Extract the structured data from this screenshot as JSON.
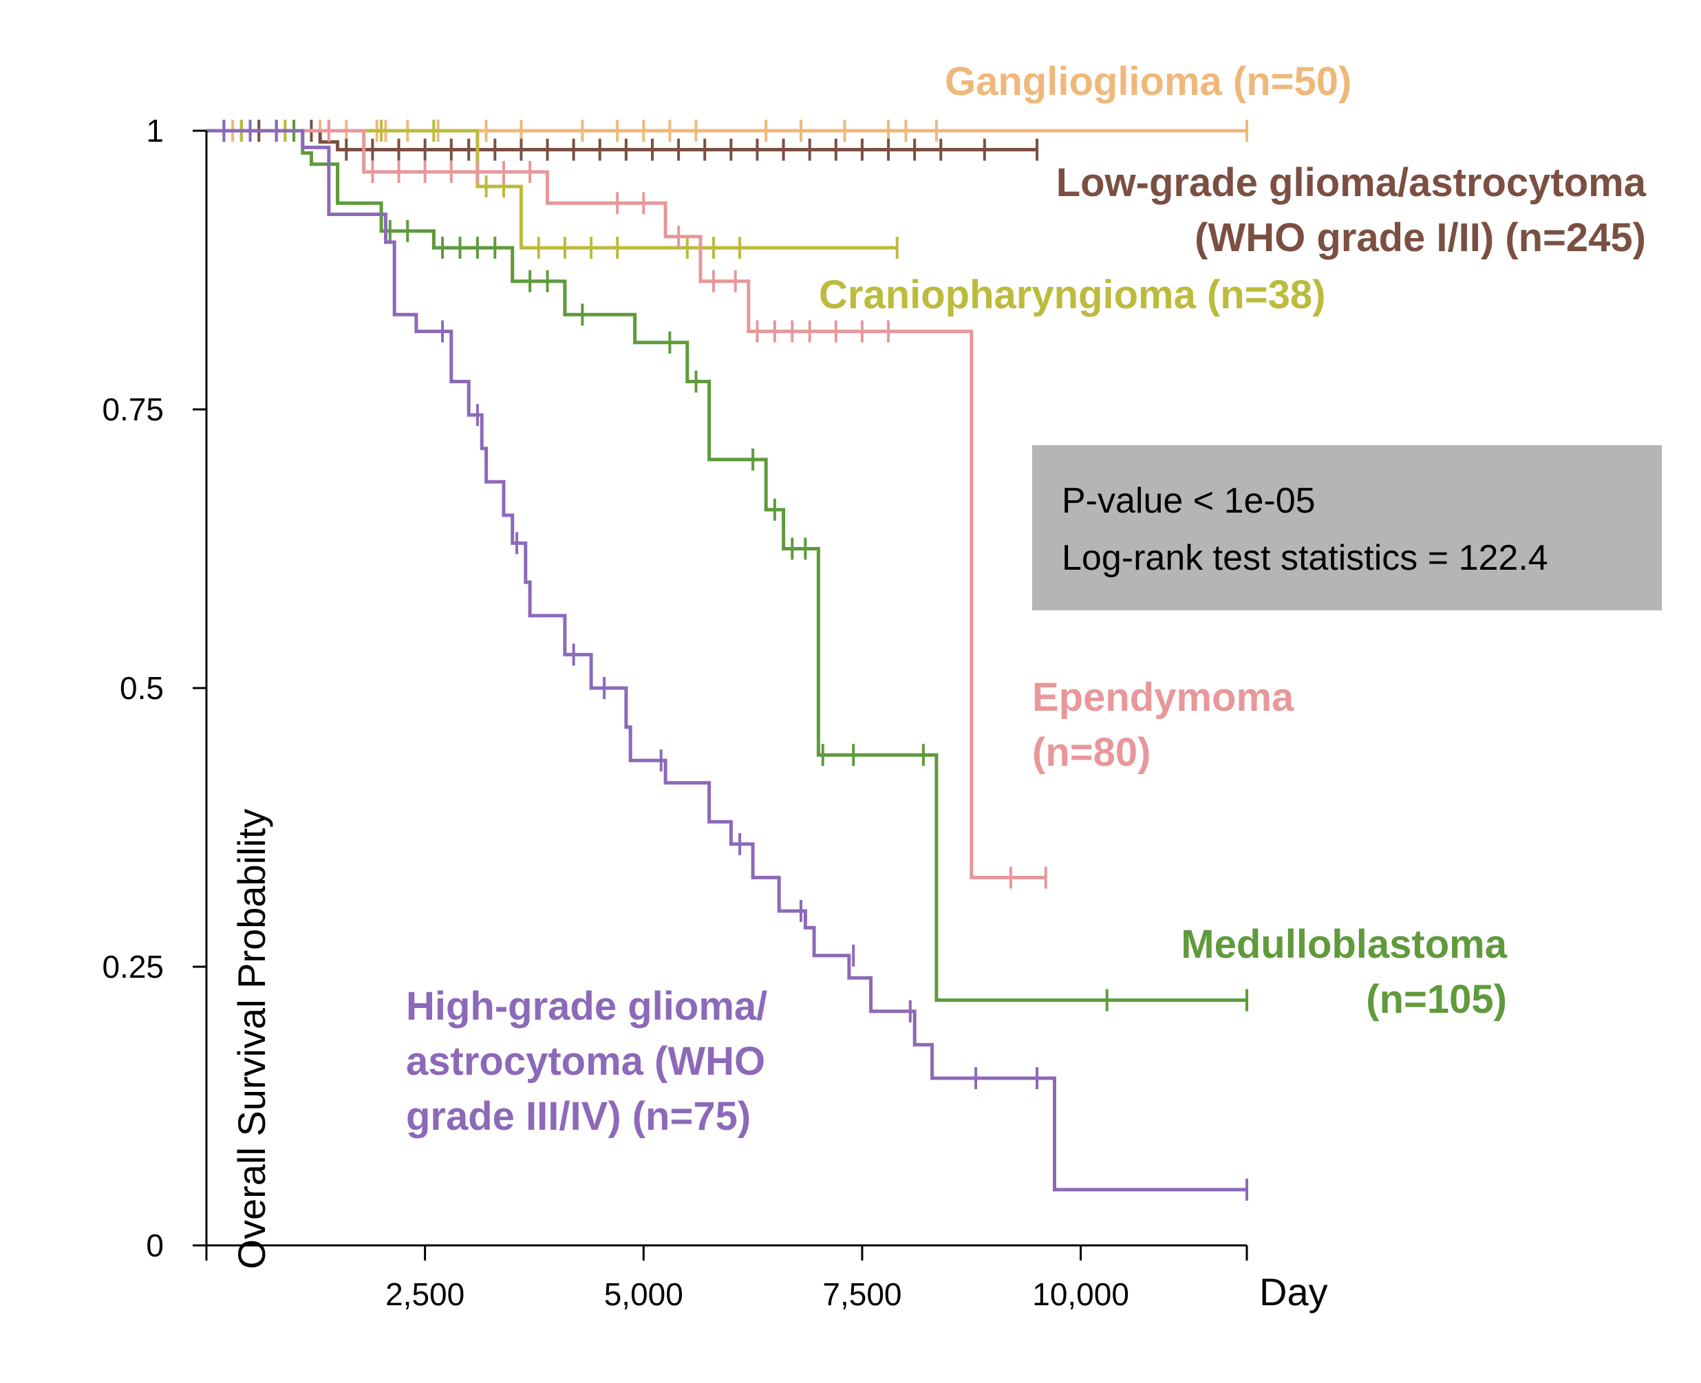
{
  "chart_data": {
    "type": "line",
    "subtype": "kaplan-meier step curves with censor ticks",
    "xlabel": "Day",
    "ylabel": "Overall Survival Probability",
    "xlim": [
      0,
      11900
    ],
    "ylim": [
      0,
      1
    ],
    "x_ticks": [
      2500,
      5000,
      7500,
      10000
    ],
    "x_tick_labels": [
      "2,500",
      "5,000",
      "7,500",
      "10,000"
    ],
    "y_ticks": [
      0,
      0.25,
      0.5,
      0.75,
      1
    ],
    "y_tick_labels": [
      "0",
      "0.25",
      "0.5",
      "0.75",
      "1"
    ],
    "grid": false,
    "stats_box": {
      "lines": [
        "P-value < 1e-05",
        "Log-rank test statistics = 122.4"
      ],
      "background": "#b5b5b5"
    },
    "series": [
      {
        "name": "Ganglioglioma (n=50)",
        "label_lines": [
          "Ganglioglioma (n=50)"
        ],
        "label_align": "left",
        "color": "#efb87a",
        "steps": [
          [
            0,
            1
          ],
          [
            11900,
            1
          ]
        ],
        "censors": [
          [
            300,
            1
          ],
          [
            600,
            1
          ],
          [
            900,
            1
          ],
          [
            1300,
            1
          ],
          [
            1600,
            1
          ],
          [
            1950,
            1
          ],
          [
            2050,
            1
          ],
          [
            2300,
            1
          ],
          [
            2650,
            1
          ],
          [
            3200,
            1
          ],
          [
            3600,
            1
          ],
          [
            4300,
            1
          ],
          [
            4700,
            1
          ],
          [
            5000,
            1
          ],
          [
            5300,
            1
          ],
          [
            5600,
            1
          ],
          [
            6400,
            1
          ],
          [
            6800,
            1
          ],
          [
            7300,
            1
          ],
          [
            7800,
            1
          ],
          [
            8000,
            1
          ],
          [
            8350,
            1
          ],
          [
            11900,
            1
          ]
        ]
      },
      {
        "name": "Low-grade glioma/astrocytoma (WHO grade I/II) (n=245)",
        "label_lines": [
          "Low-grade glioma/astrocytoma",
          "(WHO grade I/II) (n=245)"
        ],
        "label_align": "right",
        "color": "#7b4f42",
        "steps": [
          [
            0,
            1
          ],
          [
            1300,
            1
          ],
          [
            1300,
            0.99
          ],
          [
            1500,
            0.99
          ],
          [
            1500,
            0.983
          ],
          [
            9500,
            0.983
          ]
        ],
        "censors": [
          [
            200,
            1
          ],
          [
            400,
            1
          ],
          [
            600,
            1
          ],
          [
            800,
            1
          ],
          [
            1000,
            1
          ],
          [
            1200,
            1
          ],
          [
            1600,
            0.983
          ],
          [
            1900,
            0.983
          ],
          [
            2200,
            0.983
          ],
          [
            2500,
            0.983
          ],
          [
            2800,
            0.983
          ],
          [
            3000,
            0.983
          ],
          [
            3300,
            0.983
          ],
          [
            3600,
            0.983
          ],
          [
            3900,
            0.983
          ],
          [
            4200,
            0.983
          ],
          [
            4500,
            0.983
          ],
          [
            4800,
            0.983
          ],
          [
            5100,
            0.983
          ],
          [
            5400,
            0.983
          ],
          [
            5700,
            0.983
          ],
          [
            6000,
            0.983
          ],
          [
            6300,
            0.983
          ],
          [
            6600,
            0.983
          ],
          [
            6900,
            0.983
          ],
          [
            7200,
            0.983
          ],
          [
            7500,
            0.983
          ],
          [
            7800,
            0.983
          ],
          [
            8100,
            0.983
          ],
          [
            8400,
            0.983
          ],
          [
            8900,
            0.983
          ],
          [
            9500,
            0.983
          ]
        ]
      },
      {
        "name": "Craniopharyngioma (n=38)",
        "label_lines": [
          "Craniopharyngioma (n=38)"
        ],
        "label_align": "left",
        "color": "#bcbb3c",
        "steps": [
          [
            0,
            1
          ],
          [
            3100,
            1
          ],
          [
            3100,
            0.95
          ],
          [
            3600,
            0.95
          ],
          [
            3600,
            0.895
          ],
          [
            7900,
            0.895
          ]
        ],
        "censors": [
          [
            400,
            1
          ],
          [
            900,
            1
          ],
          [
            1400,
            1
          ],
          [
            2000,
            1
          ],
          [
            2600,
            1
          ],
          [
            3200,
            0.95
          ],
          [
            3400,
            0.95
          ],
          [
            3800,
            0.895
          ],
          [
            4100,
            0.895
          ],
          [
            4400,
            0.895
          ],
          [
            4700,
            0.895
          ],
          [
            5500,
            0.895
          ],
          [
            5800,
            0.895
          ],
          [
            6100,
            0.895
          ],
          [
            7900,
            0.895
          ]
        ]
      },
      {
        "name": "Ependymoma (n=80)",
        "label_lines": [
          "Ependymoma",
          "(n=80)"
        ],
        "label_align": "left",
        "color": "#e8979a",
        "steps": [
          [
            0,
            1
          ],
          [
            1800,
            1
          ],
          [
            1800,
            0.963
          ],
          [
            2900,
            0.963
          ],
          [
            2900,
            0.963
          ],
          [
            3900,
            0.963
          ],
          [
            3900,
            0.935
          ],
          [
            5250,
            0.935
          ],
          [
            5250,
            0.905
          ],
          [
            5650,
            0.905
          ],
          [
            5650,
            0.865
          ],
          [
            6200,
            0.865
          ],
          [
            6200,
            0.82
          ],
          [
            8750,
            0.82
          ],
          [
            8750,
            0.33
          ],
          [
            9600,
            0.33
          ]
        ],
        "censors": [
          [
            500,
            1
          ],
          [
            1000,
            1
          ],
          [
            1400,
            1
          ],
          [
            1900,
            0.963
          ],
          [
            2200,
            0.963
          ],
          [
            2500,
            0.963
          ],
          [
            2800,
            0.963
          ],
          [
            3100,
            0.963
          ],
          [
            3400,
            0.963
          ],
          [
            3700,
            0.963
          ],
          [
            4700,
            0.935
          ],
          [
            5000,
            0.935
          ],
          [
            5400,
            0.905
          ],
          [
            5800,
            0.865
          ],
          [
            6050,
            0.865
          ],
          [
            6300,
            0.82
          ],
          [
            6500,
            0.82
          ],
          [
            6700,
            0.82
          ],
          [
            6900,
            0.82
          ],
          [
            7200,
            0.82
          ],
          [
            7500,
            0.82
          ],
          [
            7800,
            0.82
          ],
          [
            9200,
            0.33
          ],
          [
            9600,
            0.33
          ]
        ]
      },
      {
        "name": "Medulloblastoma (n=105)",
        "label_lines": [
          "Medulloblastoma",
          "(n=105)"
        ],
        "label_align": "right",
        "color": "#5f9a3b",
        "steps": [
          [
            0,
            1
          ],
          [
            1100,
            1
          ],
          [
            1100,
            0.98
          ],
          [
            1200,
            0.98
          ],
          [
            1200,
            0.97
          ],
          [
            1500,
            0.97
          ],
          [
            1500,
            0.935
          ],
          [
            2000,
            0.935
          ],
          [
            2000,
            0.91
          ],
          [
            2600,
            0.91
          ],
          [
            2600,
            0.895
          ],
          [
            3500,
            0.895
          ],
          [
            3500,
            0.865
          ],
          [
            4100,
            0.865
          ],
          [
            4100,
            0.835
          ],
          [
            4900,
            0.835
          ],
          [
            4900,
            0.81
          ],
          [
            5500,
            0.81
          ],
          [
            5500,
            0.775
          ],
          [
            5750,
            0.775
          ],
          [
            5750,
            0.705
          ],
          [
            6400,
            0.705
          ],
          [
            6400,
            0.66
          ],
          [
            6600,
            0.66
          ],
          [
            6600,
            0.625
          ],
          [
            7000,
            0.625
          ],
          [
            7000,
            0.44
          ],
          [
            8350,
            0.44
          ],
          [
            8350,
            0.22
          ],
          [
            11900,
            0.22
          ]
        ],
        "censors": [
          [
            200,
            1
          ],
          [
            500,
            1
          ],
          [
            800,
            1
          ],
          [
            1000,
            1
          ],
          [
            2100,
            0.91
          ],
          [
            2300,
            0.91
          ],
          [
            2700,
            0.895
          ],
          [
            2900,
            0.895
          ],
          [
            3100,
            0.895
          ],
          [
            3300,
            0.895
          ],
          [
            3700,
            0.865
          ],
          [
            3900,
            0.865
          ],
          [
            4300,
            0.835
          ],
          [
            5300,
            0.81
          ],
          [
            5600,
            0.775
          ],
          [
            6250,
            0.705
          ],
          [
            6500,
            0.66
          ],
          [
            6700,
            0.625
          ],
          [
            6850,
            0.625
          ],
          [
            7050,
            0.44
          ],
          [
            7400,
            0.44
          ],
          [
            8200,
            0.44
          ],
          [
            10300,
            0.22
          ],
          [
            11900,
            0.22
          ]
        ]
      },
      {
        "name": "High-grade glioma/astrocytoma (WHO grade III/IV) (n=75)",
        "label_lines": [
          "High-grade glioma/",
          "astrocytoma (WHO",
          "grade III/IV) (n=75)"
        ],
        "label_align": "left",
        "color": "#8c69b9",
        "steps": [
          [
            0,
            1
          ],
          [
            1100,
            1
          ],
          [
            1100,
            0.985
          ],
          [
            1400,
            0.985
          ],
          [
            1400,
            0.925
          ],
          [
            2050,
            0.925
          ],
          [
            2050,
            0.9
          ],
          [
            2150,
            0.9
          ],
          [
            2150,
            0.835
          ],
          [
            2400,
            0.835
          ],
          [
            2400,
            0.82
          ],
          [
            2800,
            0.82
          ],
          [
            2800,
            0.775
          ],
          [
            3000,
            0.775
          ],
          [
            3000,
            0.745
          ],
          [
            3150,
            0.745
          ],
          [
            3150,
            0.715
          ],
          [
            3200,
            0.715
          ],
          [
            3200,
            0.685
          ],
          [
            3400,
            0.685
          ],
          [
            3400,
            0.655
          ],
          [
            3500,
            0.655
          ],
          [
            3500,
            0.63
          ],
          [
            3650,
            0.63
          ],
          [
            3650,
            0.595
          ],
          [
            3700,
            0.595
          ],
          [
            3700,
            0.565
          ],
          [
            4100,
            0.565
          ],
          [
            4100,
            0.53
          ],
          [
            4400,
            0.53
          ],
          [
            4400,
            0.5
          ],
          [
            4800,
            0.5
          ],
          [
            4800,
            0.465
          ],
          [
            4850,
            0.465
          ],
          [
            4850,
            0.435
          ],
          [
            5250,
            0.435
          ],
          [
            5250,
            0.415
          ],
          [
            5750,
            0.415
          ],
          [
            5750,
            0.38
          ],
          [
            6000,
            0.38
          ],
          [
            6000,
            0.36
          ],
          [
            6250,
            0.36
          ],
          [
            6250,
            0.33
          ],
          [
            6550,
            0.33
          ],
          [
            6550,
            0.3
          ],
          [
            6850,
            0.3
          ],
          [
            6850,
            0.285
          ],
          [
            6950,
            0.285
          ],
          [
            6950,
            0.26
          ],
          [
            7350,
            0.26
          ],
          [
            7350,
            0.24
          ],
          [
            7600,
            0.24
          ],
          [
            7600,
            0.21
          ],
          [
            8100,
            0.21
          ],
          [
            8100,
            0.18
          ],
          [
            8300,
            0.18
          ],
          [
            8300,
            0.15
          ],
          [
            9700,
            0.15
          ],
          [
            9700,
            0.05
          ],
          [
            11900,
            0.05
          ]
        ],
        "censors": [
          [
            200,
            1
          ],
          [
            500,
            1
          ],
          [
            800,
            1
          ],
          [
            2700,
            0.82
          ],
          [
            3100,
            0.745
          ],
          [
            3550,
            0.63
          ],
          [
            4200,
            0.53
          ],
          [
            4550,
            0.5
          ],
          [
            5200,
            0.435
          ],
          [
            6100,
            0.36
          ],
          [
            6800,
            0.3
          ],
          [
            7400,
            0.26
          ],
          [
            8050,
            0.21
          ],
          [
            8800,
            0.15
          ],
          [
            9500,
            0.15
          ],
          [
            11900,
            0.05
          ]
        ]
      }
    ]
  }
}
